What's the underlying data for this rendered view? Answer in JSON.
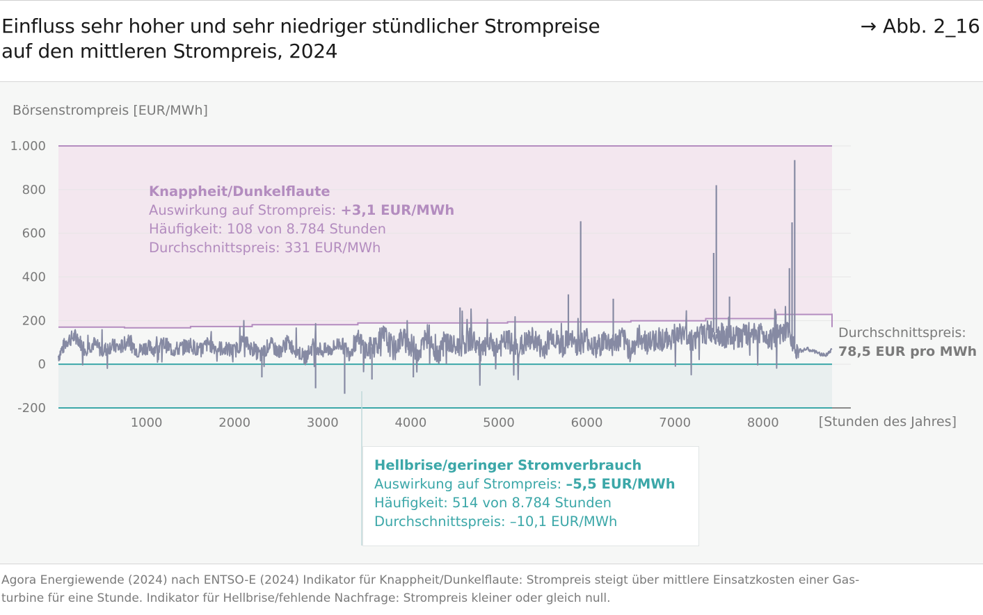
{
  "header": {
    "title_line1": "Einfluss sehr hoher und sehr niedriger stündlicher Strompreise",
    "title_line2": "auf den mittleren Strompreis, 2024",
    "figure_ref": "→ Abb. 2_16"
  },
  "chart_data": {
    "type": "line",
    "ylabel": "Börsenstrompreis [EUR/MWh]",
    "xlabel": "[Stunden des Jahres]",
    "xlim": [
      0,
      8784
    ],
    "ylim": [
      -200,
      1000
    ],
    "yticks": [
      1000,
      800,
      600,
      400,
      200,
      0,
      -200
    ],
    "ytick_labels": [
      "1.000",
      "800",
      "600",
      "400",
      "200",
      "0",
      "-200"
    ],
    "xticks": [
      1000,
      2000,
      3000,
      4000,
      5000,
      6000,
      7000,
      8000
    ],
    "xtick_labels": [
      "1000",
      "2000",
      "3000",
      "4000",
      "5000",
      "6000",
      "7000",
      "8000"
    ],
    "grid": true,
    "colors": {
      "price_line": "#868aa3",
      "scarcity": "#b38cbf",
      "scarcity_fill": "#f3e7ef",
      "negative": "#3ba7a8",
      "negative_fill": "#e9efef"
    },
    "bands": {
      "scarcity": {
        "from": "threshold",
        "to": 1000
      },
      "negative": {
        "from": -200,
        "to": 0
      }
    },
    "threshold_series": {
      "x": [
        0,
        750,
        1500,
        2200,
        3400,
        5100,
        6500,
        7350,
        8150,
        8784
      ],
      "y": [
        170,
        167,
        173,
        181,
        189,
        194,
        199,
        209,
        228,
        232
      ]
    },
    "price_series": {
      "x": [
        0,
        100,
        200,
        300,
        400,
        500,
        600,
        700,
        800,
        900,
        1000,
        1100,
        1200,
        1300,
        1400,
        1500,
        1600,
        1700,
        1800,
        1900,
        2000,
        2100,
        2200,
        2300,
        2400,
        2500,
        2600,
        2700,
        2800,
        2900,
        3000,
        3100,
        3200,
        3300,
        3400,
        3500,
        3600,
        3700,
        3800,
        3900,
        4000,
        4100,
        4200,
        4300,
        4400,
        4500,
        4600,
        4700,
        4800,
        4900,
        5000,
        5100,
        5200,
        5300,
        5400,
        5500,
        5600,
        5700,
        5800,
        5900,
        6000,
        6100,
        6200,
        6300,
        6400,
        6500,
        6600,
        6700,
        6800,
        6900,
        7000,
        7100,
        7200,
        7300,
        7400,
        7500,
        7600,
        7700,
        7800,
        7900,
        8000,
        8100,
        8200,
        8300,
        8400,
        8500,
        8600,
        8700,
        8784
      ],
      "y": [
        40,
        110,
        130,
        70,
        95,
        60,
        85,
        75,
        110,
        60,
        80,
        70,
        95,
        65,
        75,
        90,
        60,
        95,
        75,
        70,
        60,
        110,
        70,
        40,
        95,
        55,
        100,
        65,
        30,
        90,
        60,
        70,
        100,
        50,
        110,
        60,
        90,
        130,
        70,
        120,
        85,
        60,
        140,
        45,
        110,
        75,
        95,
        120,
        55,
        90,
        80,
        110,
        65,
        95,
        120,
        60,
        140,
        80,
        110,
        90,
        120,
        70,
        110,
        90,
        120,
        60,
        130,
        95,
        120,
        110,
        130,
        140,
        110,
        135,
        150,
        140,
        120,
        125,
        130,
        150,
        140,
        120,
        130,
        145,
        60,
        70,
        55,
        40,
        65
      ]
    },
    "spikes": [
      {
        "x": 5930,
        "y": 655
      },
      {
        "x": 7470,
        "y": 820
      },
      {
        "x": 7440,
        "y": 510
      },
      {
        "x": 8360,
        "y": 935
      },
      {
        "x": 8330,
        "y": 650
      },
      {
        "x": 8300,
        "y": 440
      },
      {
        "x": 4560,
        "y": 260
      },
      {
        "x": 5790,
        "y": 320
      },
      {
        "x": 6300,
        "y": 300
      },
      {
        "x": 7620,
        "y": 310
      },
      {
        "x": 3250,
        "y": -135
      },
      {
        "x": 2920,
        "y": -110
      },
      {
        "x": 2310,
        "y": -60
      },
      {
        "x": 3560,
        "y": -70
      },
      {
        "x": 4030,
        "y": -60
      }
    ],
    "annotations": {
      "scarcity": {
        "heading": "Knappheit/Dunkelflaute",
        "impact_label": "Auswirkung auf Strompreis: ",
        "impact_value": "+3,1 EUR/MWh",
        "frequency": "Häufigkeit: 108 von 8.784 Stunden",
        "avg_price": "Durchschnittspreis: 331 EUR/MWh"
      },
      "negative": {
        "heading": "Hellbrise/geringer Stromverbrauch",
        "impact_label": "Auswirkung auf Strompreis: ",
        "impact_value": "–5,5 EUR/MWh",
        "frequency": "Häufigkeit: 514 von 8.784 Stunden",
        "avg_price": "Durchschnittspreis: –10,1 EUR/MWh"
      }
    },
    "average": {
      "label": "Durchschnittspreis:",
      "value_text": "78,5 EUR pro MWh",
      "value": 78.5
    }
  },
  "footnote": {
    "line1": "Agora Energiewende (2024) nach ENTSO-E (2024) Indikator für Knappheit/Dunkelflaute: Strompreis steigt über mittlere Einsatzkosten einer Gas-",
    "line2": "turbine für eine Stunde. Indikator für Hellbrise/fehlende Nachfrage: Strompreis kleiner oder gleich null."
  }
}
